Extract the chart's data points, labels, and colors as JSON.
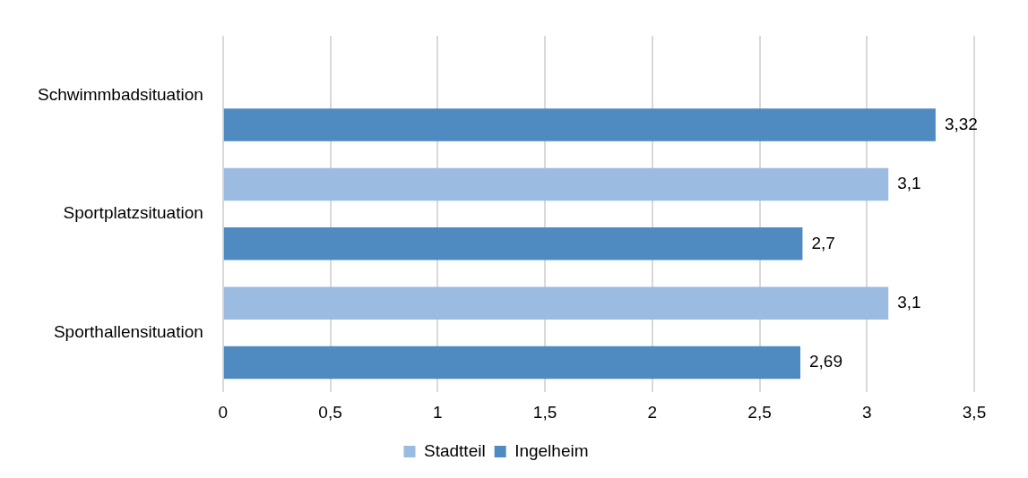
{
  "chart_data": {
    "type": "bar",
    "orientation": "horizontal",
    "categories": [
      "Schwimmbadsituation",
      "Sportplatzsituation",
      "Sporthallensituation"
    ],
    "series": [
      {
        "name": "Stadtteil",
        "color": "#9bbbe0",
        "values": [
          null,
          3.1,
          3.1
        ],
        "value_labels": [
          null,
          "3,1",
          "3,1"
        ]
      },
      {
        "name": "Ingelheim",
        "color": "#4f8bc0",
        "values": [
          3.32,
          2.7,
          2.69
        ],
        "value_labels": [
          "3,32",
          "2,7",
          "2,69"
        ]
      }
    ],
    "xlim": [
      0,
      3.5
    ],
    "xticks": [
      0,
      {
        "value": 0.5,
        "label": "0,5"
      },
      1,
      {
        "value": 1.5,
        "label": "1,5"
      },
      2,
      {
        "value": 2.5,
        "label": "2,5"
      },
      3,
      {
        "value": 3.5,
        "label": "3,5"
      }
    ],
    "grid": "x",
    "legend": "bottom"
  }
}
